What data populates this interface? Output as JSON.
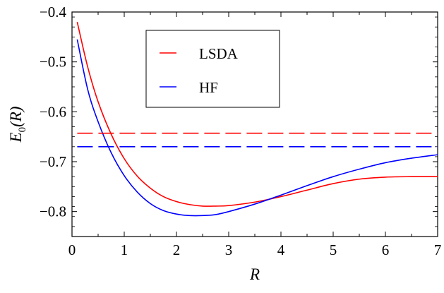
{
  "chart_data": {
    "type": "line",
    "xlabel": "R",
    "ylabel": "E0(R)",
    "ylabel_main": "E",
    "ylabel_sub": "0",
    "ylabel_arg": "(R)",
    "xlim": [
      0,
      7
    ],
    "ylim": [
      -0.85,
      -0.4
    ],
    "grid": false,
    "legend_position": "top-center",
    "x_ticks": [
      0,
      1,
      2,
      3,
      4,
      5,
      6,
      7
    ],
    "x_tick_labels": [
      "0",
      "1",
      "2",
      "3",
      "4",
      "5",
      "6",
      "7"
    ],
    "y_ticks": [
      -0.8,
      -0.7,
      -0.6,
      -0.5,
      -0.4
    ],
    "y_tick_labels": [
      "−0.8",
      "−0.7",
      "−0.6",
      "−0.5",
      "−0.4"
    ],
    "series": [
      {
        "name": "LSDA",
        "color": "#ff0000",
        "style": "solid",
        "x": [
          0.1,
          0.3,
          0.5,
          0.75,
          1.0,
          1.25,
          1.5,
          1.75,
          2.0,
          2.25,
          2.5,
          2.75,
          3.0,
          3.5,
          4.0,
          4.5,
          5.0,
          5.5,
          6.0,
          6.5,
          7.0
        ],
        "y": [
          -0.42,
          -0.51,
          -0.58,
          -0.645,
          -0.694,
          -0.729,
          -0.753,
          -0.77,
          -0.78,
          -0.786,
          -0.789,
          -0.789,
          -0.788,
          -0.781,
          -0.77,
          -0.757,
          -0.744,
          -0.735,
          -0.731,
          -0.73,
          -0.73
        ]
      },
      {
        "name": "HF",
        "color": "#0000ff",
        "style": "solid",
        "x": [
          0.1,
          0.3,
          0.5,
          0.75,
          1.0,
          1.25,
          1.5,
          1.75,
          2.0,
          2.25,
          2.5,
          2.75,
          3.0,
          3.5,
          4.0,
          4.5,
          5.0,
          5.5,
          6.0,
          6.5,
          7.0
        ],
        "y": [
          -0.455,
          -0.555,
          -0.62,
          -0.682,
          -0.728,
          -0.761,
          -0.784,
          -0.798,
          -0.805,
          -0.808,
          -0.808,
          -0.806,
          -0.8,
          -0.785,
          -0.767,
          -0.748,
          -0.73,
          -0.715,
          -0.702,
          -0.693,
          -0.686
        ]
      },
      {
        "name": "",
        "color": "#ff0000",
        "style": "dashed",
        "x": [
          0.1,
          7.0
        ],
        "y": [
          -0.643,
          -0.643
        ]
      },
      {
        "name": "",
        "color": "#0000ff",
        "style": "dashed",
        "x": [
          0.1,
          7.0
        ],
        "y": [
          -0.67,
          -0.67
        ]
      }
    ]
  }
}
